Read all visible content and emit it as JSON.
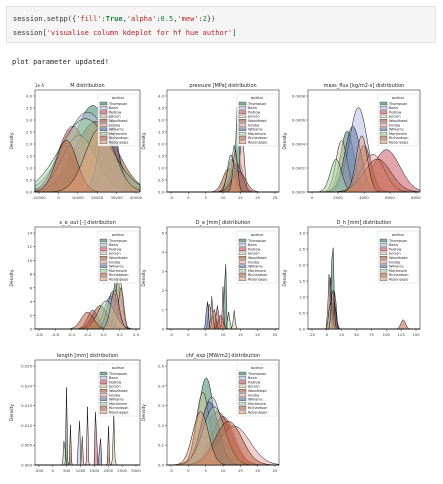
{
  "cell": {
    "line1_prefix": "session.setpp({",
    "line1_k1": "'fill'",
    "line1_colon1": ":",
    "line1_v1": "True",
    "line1_comma1": ",",
    "line1_k2": "'alpha'",
    "line1_colon2": ":",
    "line1_v2": "0.5",
    "line1_comma2": ",",
    "line1_k3": "'mew'",
    "line1_colon3": ":",
    "line1_v3": "2",
    "line1_suffix": "})",
    "line2_prefix": "session[",
    "line2_str": "'visualise column kdeplot for hf hue author'",
    "line2_suffix": "]"
  },
  "output": {
    "text": "plot parameter updated!"
  },
  "colors": {
    "Thompson": "#2e7d5b",
    "Bean": "#b7b7e6",
    "Pedlow": "#c94a5a",
    "Jenson": "#d9c7a0",
    "Woodhead": "#a0522d",
    "Ivisiba": "#e8a0a0",
    "Williams": "#5a6ea0",
    "Mortimore": "#9fd49f",
    "Richardson": "#b85a3a",
    "Rosenpepe": "#e6a07a"
  },
  "chart_data": [
    {
      "type": "area",
      "title": "M distribution",
      "xlabel": "",
      "ylabel": "Density",
      "offset_label": "1e-5",
      "xticks": [
        "-10000",
        "0",
        "10000",
        "20000",
        "30000",
        "40000"
      ],
      "yticks": [
        "0.0",
        "0.5",
        "1.0",
        "1.5",
        "2.0",
        "2.5",
        "3.0",
        "3.5",
        "4.0"
      ],
      "legend_title": "author",
      "legend": [
        "Thompson",
        "Bean",
        "Pedlow",
        "Jenson",
        "Woodhead",
        "Ivisiba",
        "Williams",
        "Mortimore",
        "Richardson",
        "Rosenpepe"
      ]
    },
    {
      "type": "area",
      "title": "pressure [MPa] distribution",
      "xlabel": "",
      "ylabel": "Density",
      "xticks": [
        "-5",
        "0",
        "5",
        "10",
        "15",
        "20",
        "25"
      ],
      "yticks": [
        "0.0",
        "0.5",
        "1.0",
        "1.5",
        "2.0",
        "2.5",
        "3.0",
        "3.5",
        "4.0"
      ],
      "legend_title": "author",
      "legend": [
        "Thompson",
        "Bean",
        "Pedlow",
        "Jenson",
        "Woodhead",
        "Ivisiba",
        "Williams",
        "Mortimore",
        "Richardson",
        "Rosenpepe"
      ]
    },
    {
      "type": "area",
      "title": "mass_flux [kg/m2-s] distribution",
      "xlabel": "",
      "ylabel": "Density",
      "xticks": [
        "0",
        "2000",
        "4000",
        "6000",
        "8000"
      ],
      "yticks": [
        "0.0000",
        "0.0002",
        "0.0004",
        "0.0006",
        "0.0008"
      ],
      "legend_title": "author",
      "legend": [
        "Thompson",
        "Bean",
        "Pedlow",
        "Jenson",
        "Woodhead",
        "Ivisiba",
        "Williams",
        "Mortimore",
        "Richardson",
        "Rosenpepe"
      ]
    },
    {
      "type": "area",
      "title": "x_e_out [-] distribution",
      "xlabel": "",
      "ylabel": "Density",
      "xticks": [
        "-0.8",
        "-0.6",
        "-0.4",
        "-0.2",
        "0.0",
        "0.2",
        "0.4"
      ],
      "yticks": [
        "0",
        "2",
        "4",
        "6",
        "8",
        "10",
        "12",
        "14"
      ],
      "legend_title": "author",
      "legend": [
        "Thompson",
        "Bean",
        "Pedlow",
        "Jenson",
        "Woodhead",
        "Ivisiba",
        "Williams",
        "Mortimore",
        "Richardson",
        "Rosenpepe"
      ]
    },
    {
      "type": "area",
      "title": "D_e [mm] distribution",
      "xlabel": "",
      "ylabel": "Density",
      "xticks": [
        "-5",
        "0",
        "5",
        "10",
        "15",
        "20",
        "25"
      ],
      "yticks": [
        "0",
        "1",
        "2",
        "3",
        "4",
        "5"
      ],
      "legend_title": "author",
      "legend": [
        "Thompson",
        "Bean",
        "Pedlow",
        "Jenson",
        "Woodhead",
        "Ivisiba",
        "Williams",
        "Mortimore",
        "Richardson",
        "Rosenpepe"
      ]
    },
    {
      "type": "area",
      "title": "D_h [mm] distribution",
      "xlabel": "",
      "ylabel": "Density",
      "xticks": [
        "-25",
        "0",
        "25",
        "50",
        "75",
        "100",
        "125",
        "150"
      ],
      "yticks": [
        "0.0",
        "0.5",
        "1.0",
        "1.5",
        "2.0",
        "2.5",
        "3.0"
      ],
      "legend_title": "author",
      "legend": [
        "Thompson",
        "Bean",
        "Pedlow",
        "Jenson",
        "Woodhead",
        "Ivisiba",
        "Williams",
        "Mortimore",
        "Richardson",
        "Rosenpepe"
      ]
    },
    {
      "type": "area",
      "title": "length [mm] distribution",
      "xlabel": "",
      "ylabel": "Density",
      "xticks": [
        "-500",
        "0",
        "500",
        "1000",
        "1500",
        "2000",
        "2500",
        "3000"
      ],
      "yticks": [
        "0.000",
        "0.005",
        "0.010",
        "0.015",
        "0.020",
        "0.025"
      ],
      "legend_title": "author",
      "legend": [
        "Thompson",
        "Bean",
        "Pedlow",
        "Jenson",
        "Woodhead",
        "Ivisiba",
        "Williams",
        "Mortimore",
        "Richardson",
        "Rosenpepe"
      ]
    },
    {
      "type": "area",
      "title": "chf_exp [MW/m2] distribution",
      "xlabel": "",
      "ylabel": "Density",
      "xticks": [
        "-5",
        "0",
        "5",
        "10",
        "15",
        "20",
        "25"
      ],
      "yticks": [
        "0.0",
        "0.1",
        "0.2",
        "0.3",
        "0.4",
        "0.5"
      ],
      "legend_title": "author",
      "legend": [
        "Thompson",
        "Bean",
        "Pedlow",
        "Jenson",
        "Woodhead",
        "Ivisiba",
        "Williams",
        "Mortimore",
        "Richardson",
        "Rosenpepe"
      ]
    }
  ]
}
